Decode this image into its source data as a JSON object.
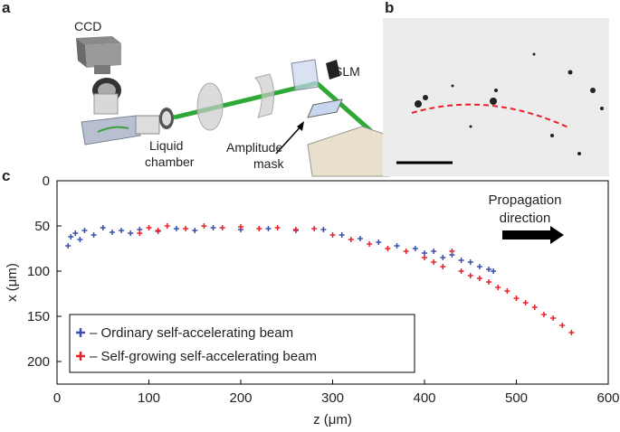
{
  "panel_labels": [
    "a",
    "b",
    "c"
  ],
  "schematic": {
    "ccd": "CCD",
    "slm": "SLM",
    "chamber": [
      "Liquid",
      "chamber"
    ],
    "mask": [
      "Amplitude",
      "mask"
    ]
  },
  "chart_data": {
    "type": "scatter",
    "xlabel": "z (μm)",
    "ylabel": "x (μm)",
    "xlim": [
      0,
      600
    ],
    "ylim": [
      0,
      225
    ],
    "y_inverted": true,
    "xticks": [
      0,
      100,
      200,
      300,
      400,
      500,
      600
    ],
    "yticks": [
      0,
      50,
      100,
      150,
      200
    ],
    "grid": false,
    "legend": "lower left",
    "annotation": [
      "Propagation",
      "direction"
    ],
    "series": [
      {
        "name": "– Ordinary self-accelerating beam",
        "color": "#3a4fb0",
        "x": [
          12,
          15,
          20,
          25,
          30,
          40,
          50,
          60,
          70,
          80,
          90,
          110,
          130,
          150,
          170,
          200,
          230,
          260,
          290,
          310,
          330,
          350,
          370,
          390,
          400,
          410,
          420,
          430,
          440,
          450,
          460,
          470,
          475
        ],
        "y": [
          72,
          62,
          58,
          65,
          55,
          60,
          52,
          57,
          55,
          58,
          54,
          56,
          53,
          55,
          52,
          54,
          53,
          55,
          54,
          60,
          64,
          68,
          72,
          75,
          80,
          78,
          85,
          82,
          88,
          90,
          95,
          98,
          100
        ]
      },
      {
        "name": "– Self-growing self-accelerating beam",
        "color": "#e8202a",
        "x": [
          90,
          100,
          110,
          120,
          140,
          160,
          180,
          200,
          220,
          240,
          260,
          280,
          300,
          320,
          340,
          360,
          380,
          400,
          410,
          420,
          430,
          440,
          450,
          460,
          470,
          480,
          490,
          500,
          510,
          520,
          530,
          540,
          550,
          560
        ],
        "y": [
          58,
          52,
          55,
          50,
          53,
          50,
          52,
          51,
          53,
          52,
          54,
          53,
          60,
          65,
          70,
          75,
          78,
          85,
          90,
          95,
          78,
          100,
          105,
          108,
          112,
          118,
          122,
          130,
          135,
          140,
          148,
          152,
          160,
          168
        ]
      }
    ]
  }
}
